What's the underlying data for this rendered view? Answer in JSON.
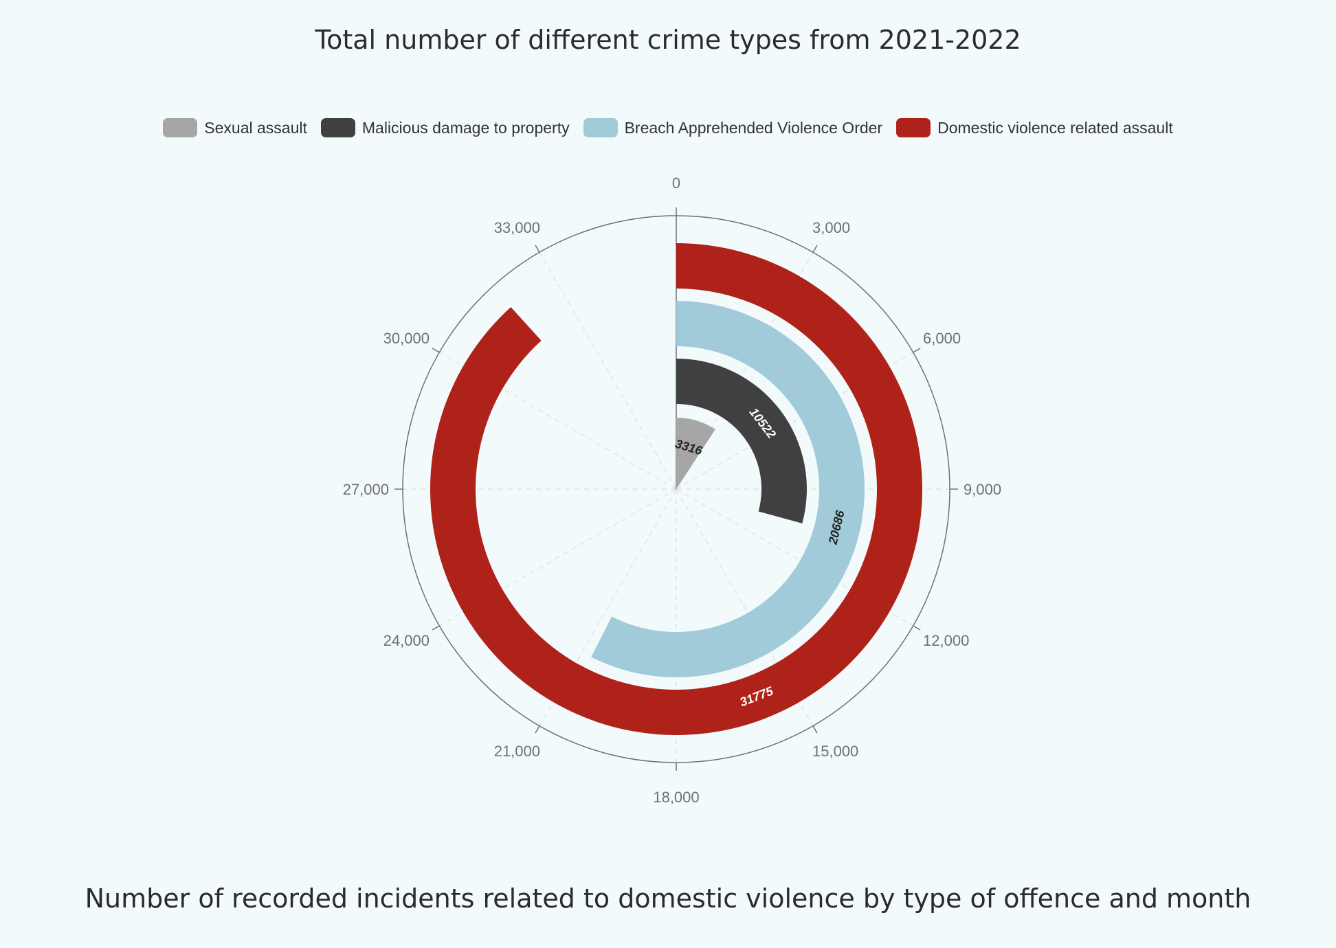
{
  "chart_data": {
    "type": "bar",
    "coordinate_system": "polar",
    "title": "Total number of different crime types from 2021-2022",
    "subtitle": "Number of recorded incidents related to domestic violence by type of offence and month",
    "angle_axis": {
      "min": 0,
      "max": 36000,
      "ticks": [
        0,
        3000,
        6000,
        9000,
        12000,
        15000,
        18000,
        21000,
        24000,
        27000,
        30000,
        33000
      ],
      "tick_labels": [
        "0",
        "3,000",
        "6,000",
        "9,000",
        "12,000",
        "15,000",
        "18,000",
        "21,000",
        "24,000",
        "27,000",
        "30,000",
        "33,000"
      ],
      "split_lines": "dashed"
    },
    "categories": [
      "Sexual assault",
      "Malicious damage to property",
      "Breach Apprehended Violence Order",
      "Domestic violence related assault"
    ],
    "series": [
      {
        "name": "Sexual assault",
        "value": 3316,
        "label": "3316",
        "color": "#a6a6a6",
        "label_color": "#222222"
      },
      {
        "name": "Malicious damage to property",
        "value": 10522,
        "label": "10522",
        "color": "#404040",
        "label_color": "#ffffff"
      },
      {
        "name": "Breach Apprehended Violence Order",
        "value": 20686,
        "label": "20686",
        "color": "#a2cbd9",
        "label_color": "#222222"
      },
      {
        "name": "Domestic violence related assault",
        "value": 31775,
        "label": "31775",
        "color": "#af2219",
        "label_color": "#ffffff"
      }
    ],
    "legend_position": "top-center",
    "background": "#f3fafc"
  }
}
